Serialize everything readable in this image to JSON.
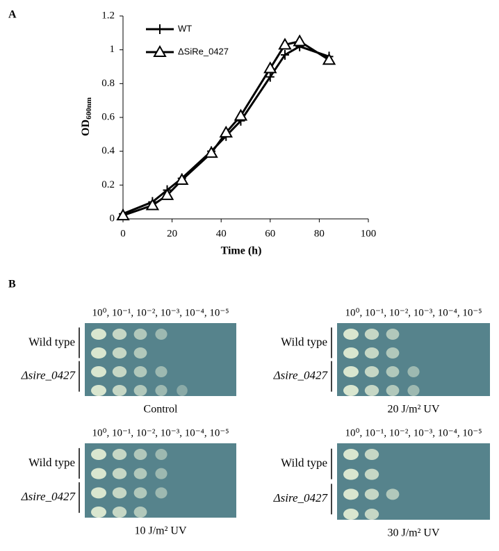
{
  "panel_a_label": "A",
  "chart_data": {
    "type": "line",
    "x_label": "Time (h)",
    "y_label": "OD",
    "y_label_sub": "600nm",
    "x": [
      0,
      12,
      18,
      24,
      36,
      42,
      48,
      60,
      66,
      72,
      84
    ],
    "series": [
      {
        "name": "WT",
        "color": "#000000",
        "marker": "plus",
        "values": [
          0.03,
          0.1,
          0.17,
          0.24,
          0.4,
          0.49,
          0.58,
          0.84,
          0.97,
          1.02,
          0.96
        ]
      },
      {
        "name": "ΔSiRe_0427",
        "color": "#000000",
        "marker": "triangle",
        "values": [
          0.02,
          0.08,
          0.14,
          0.23,
          0.39,
          0.51,
          0.61,
          0.89,
          1.03,
          1.05,
          0.94
        ]
      }
    ],
    "xlim": [
      0,
      100
    ],
    "xticks": [
      0,
      20,
      40,
      60,
      80,
      100
    ],
    "ylim": [
      0,
      1.2
    ],
    "yticks": [
      0,
      0.2,
      0.4,
      0.6,
      0.8,
      1,
      1.2
    ],
    "grid": false,
    "legend": "upper left"
  },
  "panel_b": {
    "label": "B",
    "plates": [
      {
        "header": "10⁰, 10⁻¹, 10⁻², 10⁻³, 10⁻⁴, 10⁻⁵",
        "row_labels": [
          "Wild type",
          "Δsire_0427"
        ],
        "caption": "Control"
      },
      {
        "header": "10⁰, 10⁻¹, 10⁻², 10⁻³, 10⁻⁴, 10⁻⁵",
        "row_labels": [
          "Wild type",
          "Δsire_0427"
        ],
        "caption": "20 J/m² UV"
      },
      {
        "header": "10⁰, 10⁻¹, 10⁻², 10⁻³, 10⁻⁴, 10⁻⁵",
        "row_labels": [
          "Wild type",
          "Δsire_0427"
        ],
        "caption": "10 J/m² UV"
      },
      {
        "header": "10⁰, 10⁻¹, 10⁻², 10⁻³, 10⁻⁴, 10⁻⁵",
        "row_labels": [
          "Wild type",
          "Δsire_0427"
        ],
        "caption": "30 J/m² UV"
      }
    ]
  }
}
